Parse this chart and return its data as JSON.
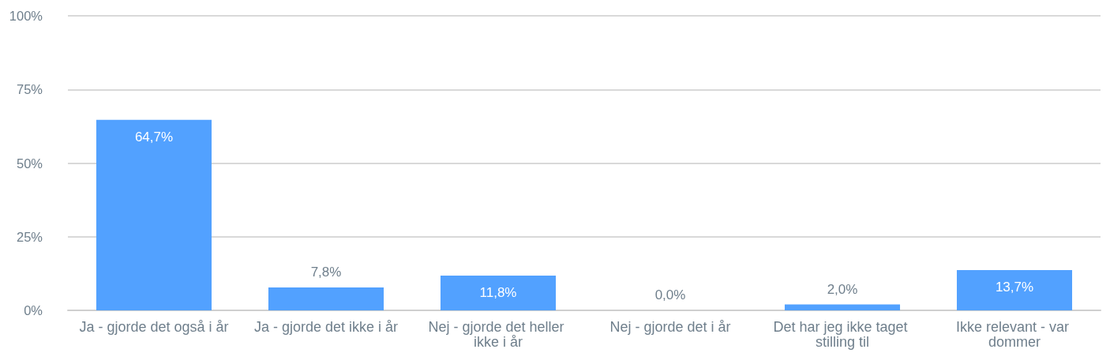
{
  "chart_data": {
    "type": "bar",
    "categories": [
      "Ja - gjorde det også i år",
      "Ja - gjorde det ikke i år",
      "Nej - gjorde det heller ikke i år",
      "Nej - gjorde det i år",
      "Det har jeg ikke taget stilling til",
      "Ikke relevant - var dommer"
    ],
    "values": [
      64.7,
      7.8,
      11.8,
      0,
      2.0,
      13.7
    ],
    "color": "#52a1ff",
    "value_labels": [
      "64,7%",
      "7,8%",
      "11,8%",
      "0,0%",
      "2,0%",
      "13,7%"
    ],
    "ylim": [
      0,
      100
    ],
    "yticks": [
      {
        "value": 0,
        "label": "0%"
      },
      {
        "value": 25,
        "label": "25%"
      },
      {
        "value": 50,
        "label": "50%"
      },
      {
        "value": 75,
        "label": "75%"
      },
      {
        "value": 100,
        "label": "100%"
      }
    ],
    "grid": "y"
  }
}
